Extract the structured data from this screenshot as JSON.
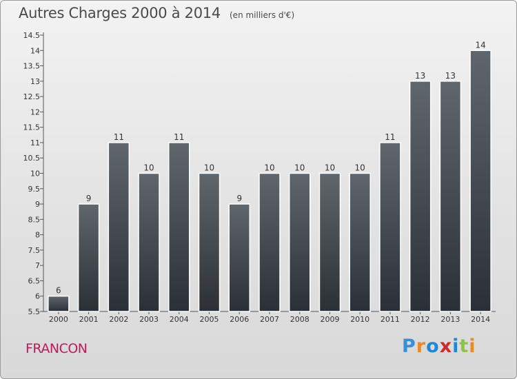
{
  "header": {
    "title": "Autres Charges 2000 à 2014",
    "subtitle": "(en milliers d'€)"
  },
  "footer": {
    "place": "FRANCON",
    "logo_text": "Proxiti",
    "logo_colors": [
      "#3a8fd8",
      "#e8892b",
      "#1e88d2",
      "#d02a2a",
      "#1e88d2",
      "#8cc63f",
      "#e8892b"
    ]
  },
  "chart_data": {
    "type": "bar",
    "title": "Autres Charges 2000 à 2014",
    "subtitle": "(en milliers d'€)",
    "xlabel": "",
    "ylabel": "",
    "categories": [
      "2000",
      "2001",
      "2002",
      "2003",
      "2004",
      "2005",
      "2006",
      "2007",
      "2008",
      "2009",
      "2010",
      "2011",
      "2012",
      "2013",
      "2014"
    ],
    "values": [
      6,
      9,
      11,
      10,
      11,
      10,
      9,
      10,
      10,
      10,
      10,
      11,
      13,
      13,
      14
    ],
    "ylim": [
      5.5,
      14.5
    ],
    "yticks": [
      5.5,
      6,
      6.5,
      7,
      7.5,
      8,
      8.5,
      9,
      9.5,
      10,
      10.5,
      11,
      11.5,
      12,
      12.5,
      13,
      13.5,
      14,
      14.5
    ],
    "ytick_labels": [
      "5.5",
      "6",
      "6.5",
      "7",
      "7.5",
      "8",
      "8.5",
      "9",
      "9.5",
      "10",
      "10.5",
      "11",
      "11.5",
      "12",
      "12.5",
      "13",
      "13.5",
      "14",
      "14.5"
    ],
    "grid": false,
    "legend": "none",
    "bar_color_top": "#5f666c",
    "bar_color_bottom": "#2a3036"
  }
}
